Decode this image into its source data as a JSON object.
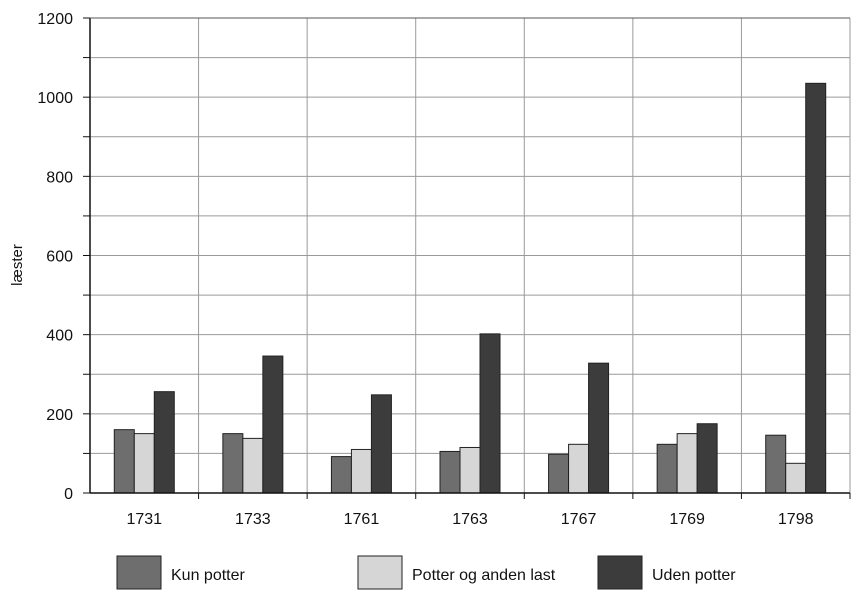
{
  "chart_data": {
    "type": "bar",
    "title": "",
    "xlabel": "",
    "ylabel": "læster",
    "ylim": [
      0,
      1200
    ],
    "yticks": [
      0,
      200,
      400,
      600,
      800,
      1000,
      1200
    ],
    "grid": true,
    "legend_position": "bottom",
    "categories": [
      "1731",
      "1733",
      "1761",
      "1763",
      "1767",
      "1769",
      "1798"
    ],
    "series": [
      {
        "name": "Kun potter",
        "color": "#6e6e6e",
        "values": [
          160,
          150,
          92,
          105,
          98,
          123,
          146
        ]
      },
      {
        "name": "Potter og anden last",
        "color": "#d6d6d6",
        "values": [
          150,
          138,
          110,
          115,
          123,
          150,
          75
        ]
      },
      {
        "name": "Uden potter",
        "color": "#3c3c3c",
        "values": [
          256,
          346,
          248,
          402,
          328,
          175,
          1035
        ]
      }
    ]
  }
}
